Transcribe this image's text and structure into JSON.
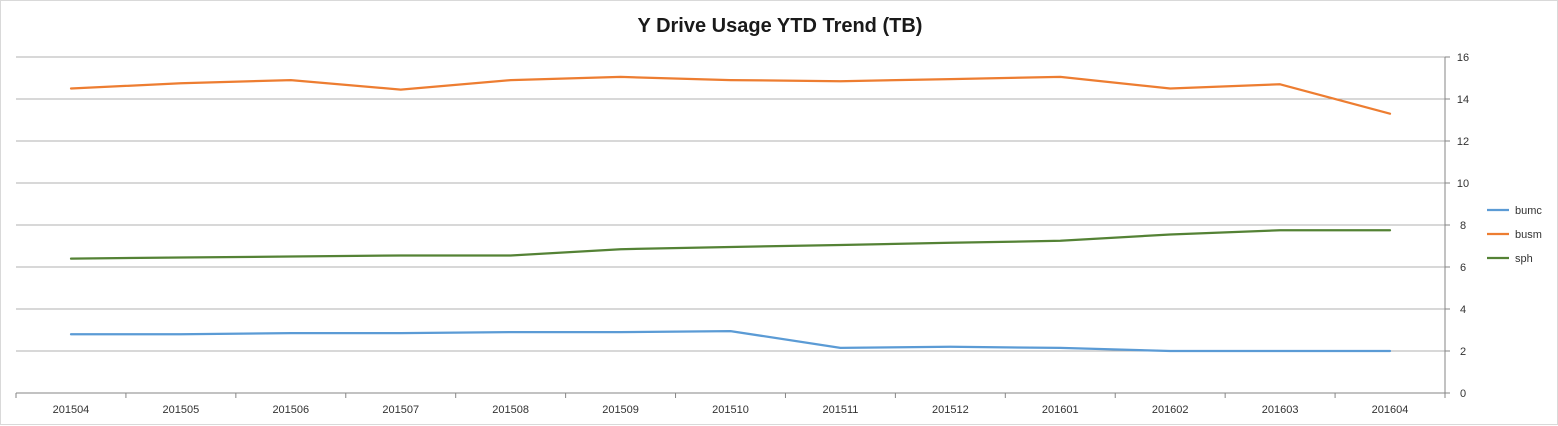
{
  "chart_data": {
    "type": "line",
    "title": "Y Drive Usage YTD Trend (TB)",
    "xlabel": "",
    "ylabel": "",
    "categories": [
      "201504",
      "201505",
      "201506",
      "201507",
      "201508",
      "201509",
      "201510",
      "201511",
      "201512",
      "201601",
      "201602",
      "201603",
      "201604"
    ],
    "series": [
      {
        "name": "bumc",
        "color": "#5b9bd5",
        "values": [
          2.8,
          2.8,
          2.85,
          2.85,
          2.9,
          2.9,
          2.95,
          2.15,
          2.2,
          2.15,
          2.0,
          2.0,
          2.0
        ]
      },
      {
        "name": "busm",
        "color": "#ed7d31",
        "values": [
          14.5,
          14.75,
          14.9,
          14.45,
          14.9,
          15.05,
          14.9,
          14.85,
          14.95,
          15.05,
          14.5,
          14.7,
          13.3
        ]
      },
      {
        "name": "sph",
        "color": "#548235",
        "values": [
          6.4,
          6.45,
          6.5,
          6.55,
          6.55,
          6.85,
          6.95,
          7.05,
          7.15,
          7.25,
          7.55,
          7.75,
          7.75
        ]
      }
    ],
    "ylim": [
      0,
      16
    ],
    "yticks": [
      0,
      2,
      4,
      6,
      8,
      10,
      12,
      14,
      16
    ],
    "y_axis_side": "right",
    "grid": true,
    "legend": "right"
  }
}
